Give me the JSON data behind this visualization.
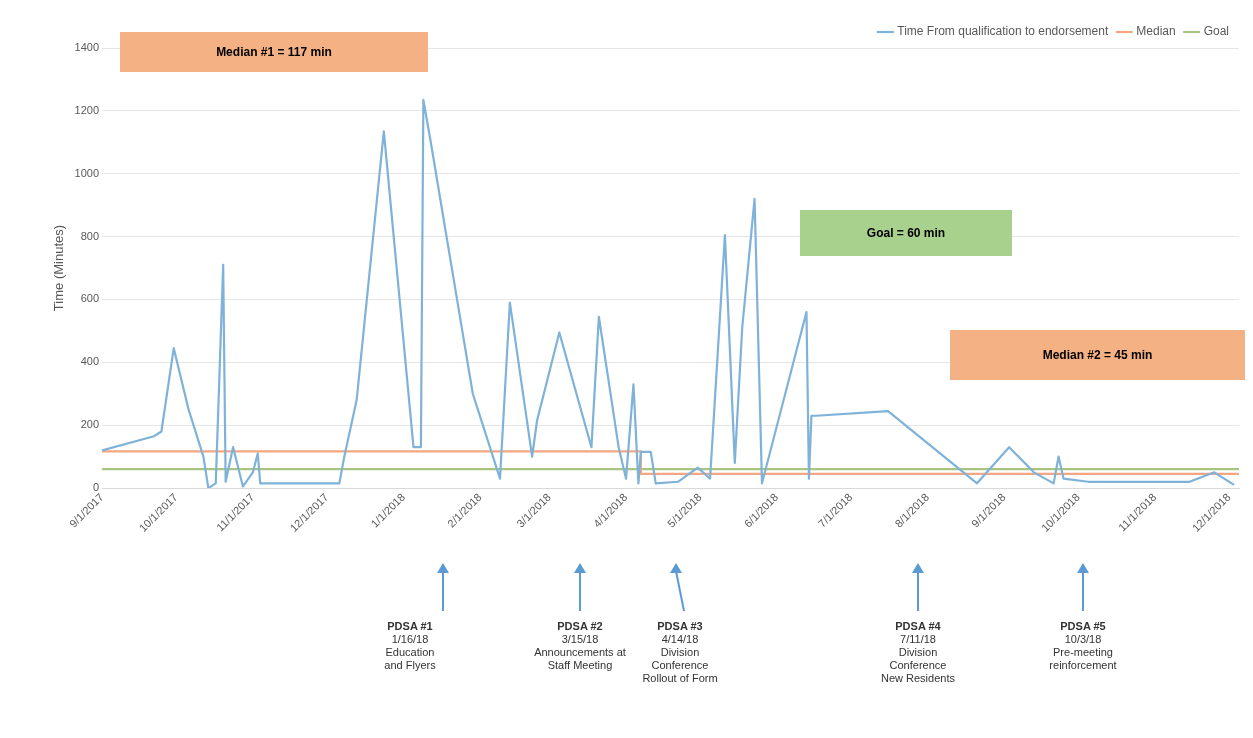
{
  "chart_data": {
    "type": "line",
    "ylabel": "Time (Minutes)",
    "xlim": [
      "2017-09-01",
      "2018-12-05"
    ],
    "xticks": [
      {
        "value": "2017-09-01",
        "label": "9/1/2017"
      },
      {
        "value": "2017-10-01",
        "label": "10/1/2017"
      },
      {
        "value": "2017-11-01",
        "label": "11/1/2017"
      },
      {
        "value": "2017-12-01",
        "label": "12/1/2017"
      },
      {
        "value": "2018-01-01",
        "label": "1/1/2018"
      },
      {
        "value": "2018-02-01",
        "label": "2/1/2018"
      },
      {
        "value": "2018-03-01",
        "label": "3/1/2018"
      },
      {
        "value": "2018-04-01",
        "label": "4/1/2018"
      },
      {
        "value": "2018-05-01",
        "label": "5/1/2018"
      },
      {
        "value": "2018-06-01",
        "label": "6/1/2018"
      },
      {
        "value": "2018-07-01",
        "label": "7/1/2018"
      },
      {
        "value": "2018-08-01",
        "label": "8/1/2018"
      },
      {
        "value": "2018-09-01",
        "label": "9/1/2018"
      },
      {
        "value": "2018-10-01",
        "label": "10/1/2018"
      },
      {
        "value": "2018-11-01",
        "label": "11/1/2018"
      },
      {
        "value": "2018-12-01",
        "label": "12/1/2018"
      }
    ],
    "ylim": [
      0,
      1400
    ],
    "yticks": [
      0,
      200,
      400,
      600,
      800,
      1000,
      1200,
      1400
    ],
    "grid": "y",
    "legend": "top right",
    "marker": "none",
    "line_style": "solid",
    "series": [
      {
        "name": "Time From qualification to endorsement",
        "color": "#7fb2d9",
        "x": [
          "2017-09-01",
          "2017-09-22",
          "2017-09-25",
          "2017-09-30",
          "2017-10-06",
          "2017-10-12",
          "2017-10-14",
          "2017-10-17",
          "2017-10-20",
          "2017-10-21",
          "2017-10-24",
          "2017-10-28",
          "2017-11-01",
          "2017-11-03",
          "2017-11-04",
          "2017-12-06",
          "2017-12-08",
          "2017-12-13",
          "2017-12-24",
          "2018-01-05",
          "2018-01-08",
          "2018-01-09",
          "2018-01-12",
          "2018-01-29",
          "2018-02-09",
          "2018-02-13",
          "2018-02-22",
          "2018-02-24",
          "2018-03-05",
          "2018-03-18",
          "2018-03-21",
          "2018-03-29",
          "2018-04-01",
          "2018-04-04",
          "2018-04-06",
          "2018-04-07",
          "2018-04-11",
          "2018-04-13",
          "2018-04-22",
          "2018-04-30",
          "2018-05-05",
          "2018-05-11",
          "2018-05-15",
          "2018-05-18",
          "2018-05-23",
          "2018-05-26",
          "2018-06-13",
          "2018-06-14",
          "2018-06-15",
          "2018-06-17",
          "2018-07-16",
          "2018-08-21",
          "2018-09-03",
          "2018-09-13",
          "2018-09-21",
          "2018-09-23",
          "2018-09-25",
          "2018-10-05",
          "2018-11-15",
          "2018-11-25",
          "2018-12-03"
        ],
        "values": [
          120,
          165,
          180,
          445,
          250,
          100,
          0,
          15,
          710,
          20,
          130,
          5,
          50,
          110,
          15,
          15,
          100,
          280,
          1135,
          130,
          130,
          1235,
          1100,
          300,
          30,
          590,
          100,
          215,
          495,
          130,
          545,
          130,
          30,
          330,
          15,
          115,
          115,
          15,
          20,
          65,
          30,
          805,
          80,
          510,
          920,
          15,
          560,
          30,
          230,
          230,
          245,
          15,
          130,
          50,
          15,
          100,
          30,
          20,
          20,
          50,
          10
        ]
      },
      {
        "name": "Median",
        "color": "#f4a582",
        "x": [
          "2017-09-01",
          "2018-04-07",
          "2018-04-07",
          "2018-12-05"
        ],
        "values": [
          117,
          117,
          45,
          45
        ]
      },
      {
        "name": "Goal",
        "color": "#a9c47f",
        "x": [
          "2017-09-01",
          "2018-12-05"
        ],
        "values": [
          60,
          60
        ]
      }
    ],
    "annotations": [
      "Median #1 = 117 min",
      "Goal = 60 min",
      "Median #2 = 45 min",
      "PDSA #1\n1/16/18\nEducation\nand Flyers",
      "PDSA #2\n3/15/18\nAnnouncements at\nStaff Meeting",
      "PDSA #3\n4/14/18\nDivision\nConference\nRollout of Form",
      "PDSA #4\n7/11/18\nDivision\nConference\nNew Residents",
      "PDSA #5\n10/3/18\nPre-meeting\nreinforcement"
    ]
  }
}
